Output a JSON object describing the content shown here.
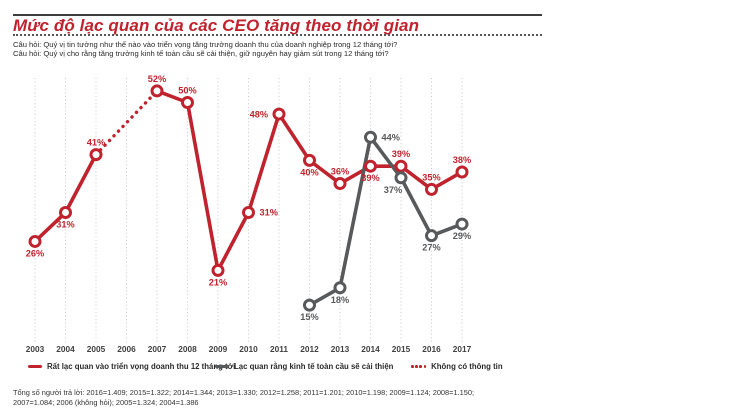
{
  "header": {
    "title": "Mức độ lạc quan của các CEO tăng theo thời gian",
    "questions": [
      "Câu hỏi: Quý vị tin tưởng như thế nào vào triển vọng tăng trưởng doanh thu của doanh nghiệp trong 12 tháng tới?",
      "Câu hỏi: Quý vị cho rằng tăng trưởng kinh tế toàn cầu sẽ cải thiện, giữ nguyên hay giảm sút trong 12 tháng tới?"
    ]
  },
  "colors": {
    "brand_red": "#c0232e",
    "series_gray": "#58595b",
    "grid": "#c8c8c8",
    "axis_text": "#414042",
    "body_text": "#2b2b2b"
  },
  "chart_data": {
    "type": "line",
    "title": "Mức độ lạc quan của các CEO tăng theo thời gian",
    "x": [
      "2003",
      "2004",
      "2005",
      "2006",
      "2007",
      "2008",
      "2009",
      "2010",
      "2011",
      "2012",
      "2013",
      "2014",
      "2015",
      "2016",
      "2017"
    ],
    "ylim": [
      10,
      57
    ],
    "grid": "vertical-dotted",
    "legend_position": "bottom",
    "missing_data_style": "dotted-connector",
    "label_format": "{v}%",
    "series": [
      {
        "id": "revenue-confidence",
        "name": "Rất lạc quan vào triển vọng doanh thu 12 tháng tới",
        "color": "#c0232e",
        "values": [
          26,
          31,
          41,
          null,
          52,
          50,
          21,
          31,
          48,
          40,
          36,
          39,
          39,
          35,
          38
        ],
        "label_pos": [
          "below",
          "below",
          "above",
          null,
          "above",
          "above",
          "below",
          "right",
          "left",
          "below",
          "above",
          "below",
          "above",
          "above",
          "above"
        ]
      },
      {
        "id": "global-economy-confidence",
        "name": "Lạc quan rằng kinh tế toàn cầu sẽ cải thiện",
        "color": "#58595b",
        "values": [
          null,
          null,
          null,
          null,
          null,
          null,
          null,
          null,
          null,
          15,
          18,
          44,
          37,
          27,
          29
        ],
        "label_pos": [
          null,
          null,
          null,
          null,
          null,
          null,
          null,
          null,
          null,
          "below",
          "below",
          "right",
          "below-left",
          "below",
          "below"
        ]
      }
    ]
  },
  "legend": {
    "items": [
      {
        "label": "Rất lạc quan vào triển vọng doanh thu 12 tháng tới",
        "swatch": "solid",
        "color": "#c0232e"
      },
      {
        "label": "Lạc quan rằng kinh tế toàn cầu sẽ cải thiện",
        "swatch": "solid",
        "color": "#58595b"
      },
      {
        "label": "Không có thông tin",
        "swatch": "dots",
        "color": "#c0232e"
      }
    ]
  },
  "footer": {
    "respondents": "Tổng số người trả lời: 2016=1.409; 2015=1.322; 2014=1.344; 2013=1.330; 2012=1.258; 2011=1.201; 2010=1.198; 2009=1.124; 2008=1.150; 2007=1.084; 2006 (không hỏi); 2005=1.324; 2004=1.386"
  }
}
